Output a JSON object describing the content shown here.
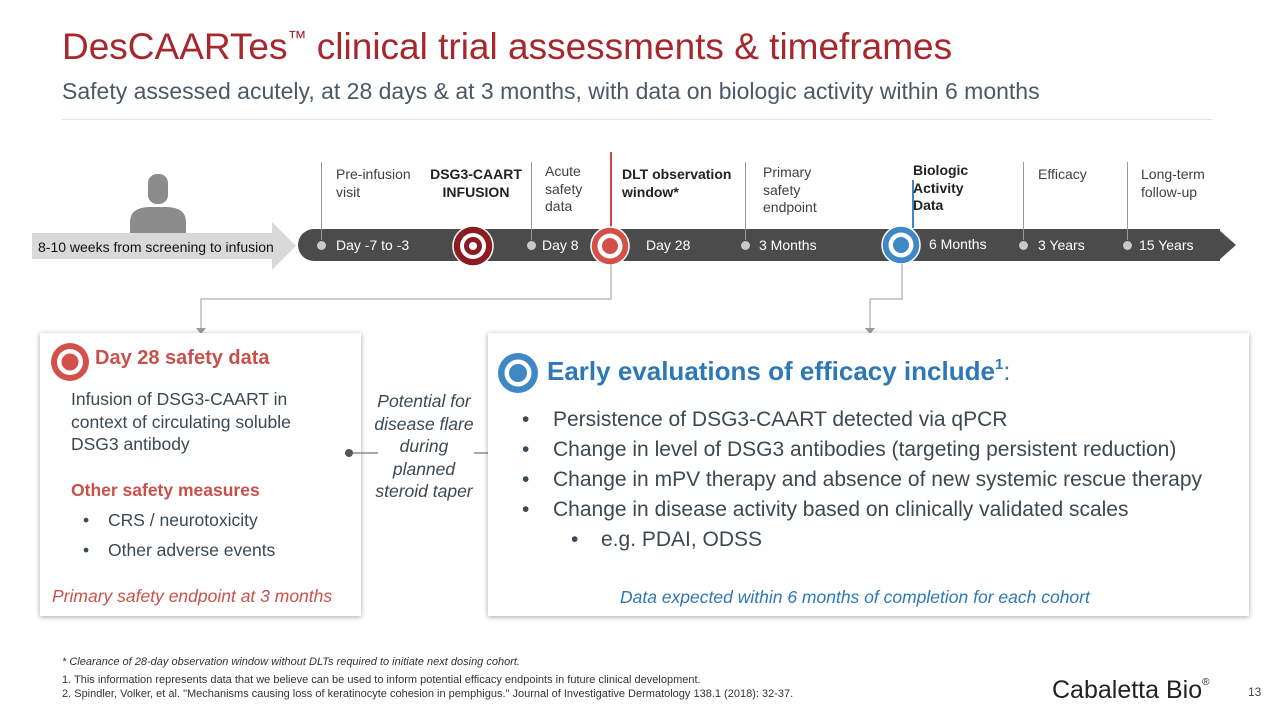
{
  "header": {
    "title": "DesCAARTes",
    "title_tm": "™",
    "title_rest": " clinical trial assessments & timeframes",
    "subtitle": "Safety assessed acutely, at 28 days & at 3 months, with data on biologic activity within 6 months"
  },
  "timeline": {
    "screening": "8-10 weeks from screening to infusion",
    "labels": {
      "preinfusion": "Pre-infusion visit",
      "infusion": "DSG3-CAART INFUSION",
      "acute": "Acute safety data",
      "dlt": "DLT observation window*",
      "primary": "Primary safety endpoint",
      "biologic": "Biologic Activity Data",
      "efficacy": "Efficacy",
      "longterm": "Long-term follow-up"
    },
    "ticks": {
      "day_minus7": "Day -7 to -3",
      "day8": "Day 8",
      "day28": "Day 28",
      "m3": "3 Months",
      "m6": "6 Months",
      "y3": "3 Years",
      "y15": "15 Years"
    }
  },
  "left_panel": {
    "heading": "Day 28 safety data",
    "body": "Infusion of DSG3-CAART in context of circulating soluble DSG3 antibody",
    "other_heading": "Other safety measures",
    "bullets": [
      "CRS / neurotoxicity",
      "Other adverse events"
    ],
    "footer": "Primary safety endpoint at 3 months"
  },
  "connector": {
    "text": "Potential for disease flare during planned steroid taper"
  },
  "right_panel": {
    "heading": "Early evaluations of efficacy include",
    "heading_sup": "1",
    "heading_colon": ":",
    "bullets": [
      "Persistence of DSG3-CAART detected via qPCR",
      "Change in level of DSG3 antibodies (targeting persistent reduction)",
      "Change in mPV therapy and absence of new systemic rescue therapy",
      "Change in disease activity based on clinically validated scales"
    ],
    "sub_bullet": "e.g. PDAI, ODSS",
    "footer": "Data expected within 6 months of completion for each cohort"
  },
  "footnotes": {
    "asterisk": "* Clearance of 28-day observation window without DLTs required to initiate next dosing cohort.",
    "note1": "1. This information represents data that we believe can be used to inform potential efficacy endpoints in future clinical development.",
    "note2": "2. Spindler, Volker, et al. \"Mechanisms causing loss of keratinocyte cohesion in pemphigus.\" Journal of Investigative Dermatology 138.1 (2018): 32-37."
  },
  "brand": {
    "name": "Cabaletta Bio",
    "reg": "®"
  },
  "page_number": "13",
  "colors": {
    "red": "#a6282d",
    "accent_red": "#c9514b",
    "blue": "#2e78b7",
    "bar": "#4b4b4b"
  },
  "icons": [
    "person-icon",
    "target-icon",
    "bullseye-icon"
  ]
}
